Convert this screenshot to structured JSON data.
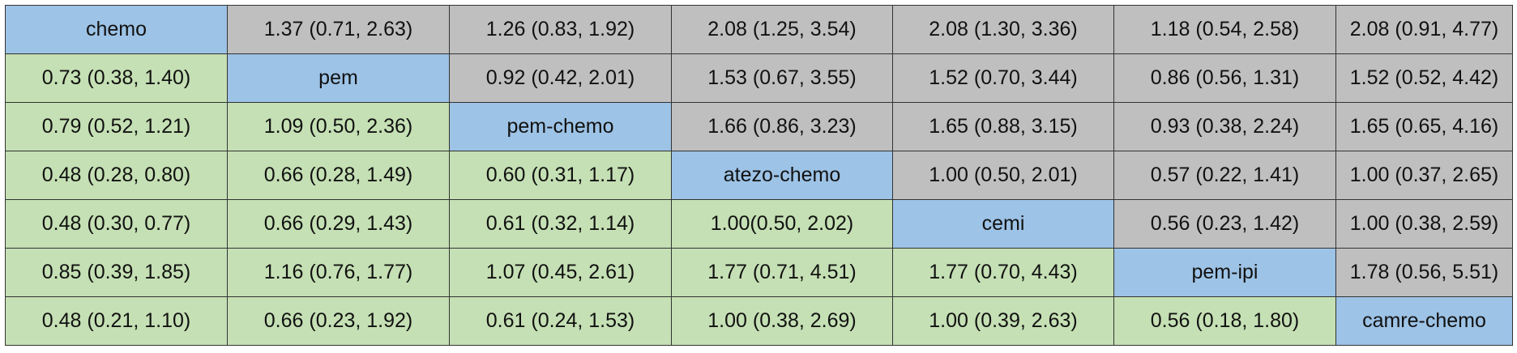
{
  "table": {
    "rows": [
      [
        "chemo",
        "1.37 (0.71, 2.63)",
        "1.26 (0.83, 1.92)",
        "2.08 (1.25, 3.54)",
        "2.08 (1.30, 3.36)",
        "1.18 (0.54, 2.58)",
        "2.08 (0.91, 4.77)"
      ],
      [
        "0.73 (0.38, 1.40)",
        "pem",
        "0.92 (0.42, 2.01)",
        "1.53 (0.67, 3.55)",
        "1.52 (0.70, 3.44)",
        "0.86 (0.56, 1.31)",
        "1.52 (0.52, 4.42)"
      ],
      [
        "0.79 (0.52, 1.21)",
        "1.09 (0.50, 2.36)",
        "pem-chemo",
        "1.66 (0.86, 3.23)",
        "1.65 (0.88, 3.15)",
        "0.93 (0.38, 2.24)",
        "1.65 (0.65, 4.16)"
      ],
      [
        "0.48 (0.28, 0.80)",
        "0.66 (0.28, 1.49)",
        "0.60 (0.31, 1.17)",
        "atezo-chemo",
        "1.00 (0.50, 2.01)",
        "0.57 (0.22, 1.41)",
        "1.00 (0.37, 2.65)"
      ],
      [
        "0.48 (0.30, 0.77)",
        "0.66 (0.29, 1.43)",
        "0.61 (0.32, 1.14)",
        "1.00(0.50, 2.02)",
        "cemi",
        "0.56 (0.23, 1.42)",
        "1.00 (0.38, 2.59)"
      ],
      [
        "0.85 (0.39, 1.85)",
        "1.16 (0.76, 1.77)",
        "1.07 (0.45, 2.61)",
        "1.77 (0.71, 4.51)",
        "1.77 (0.70, 4.43)",
        "pem-ipi",
        "1.78 (0.56, 5.51)"
      ],
      [
        "0.48 (0.21, 1.10)",
        "0.66 (0.23, 1.92)",
        "0.61 (0.24, 1.53)",
        "1.00 (0.38, 2.69)",
        "1.00 (0.39, 2.63)",
        "0.56 (0.18, 1.80)",
        "camre-chemo"
      ]
    ]
  }
}
